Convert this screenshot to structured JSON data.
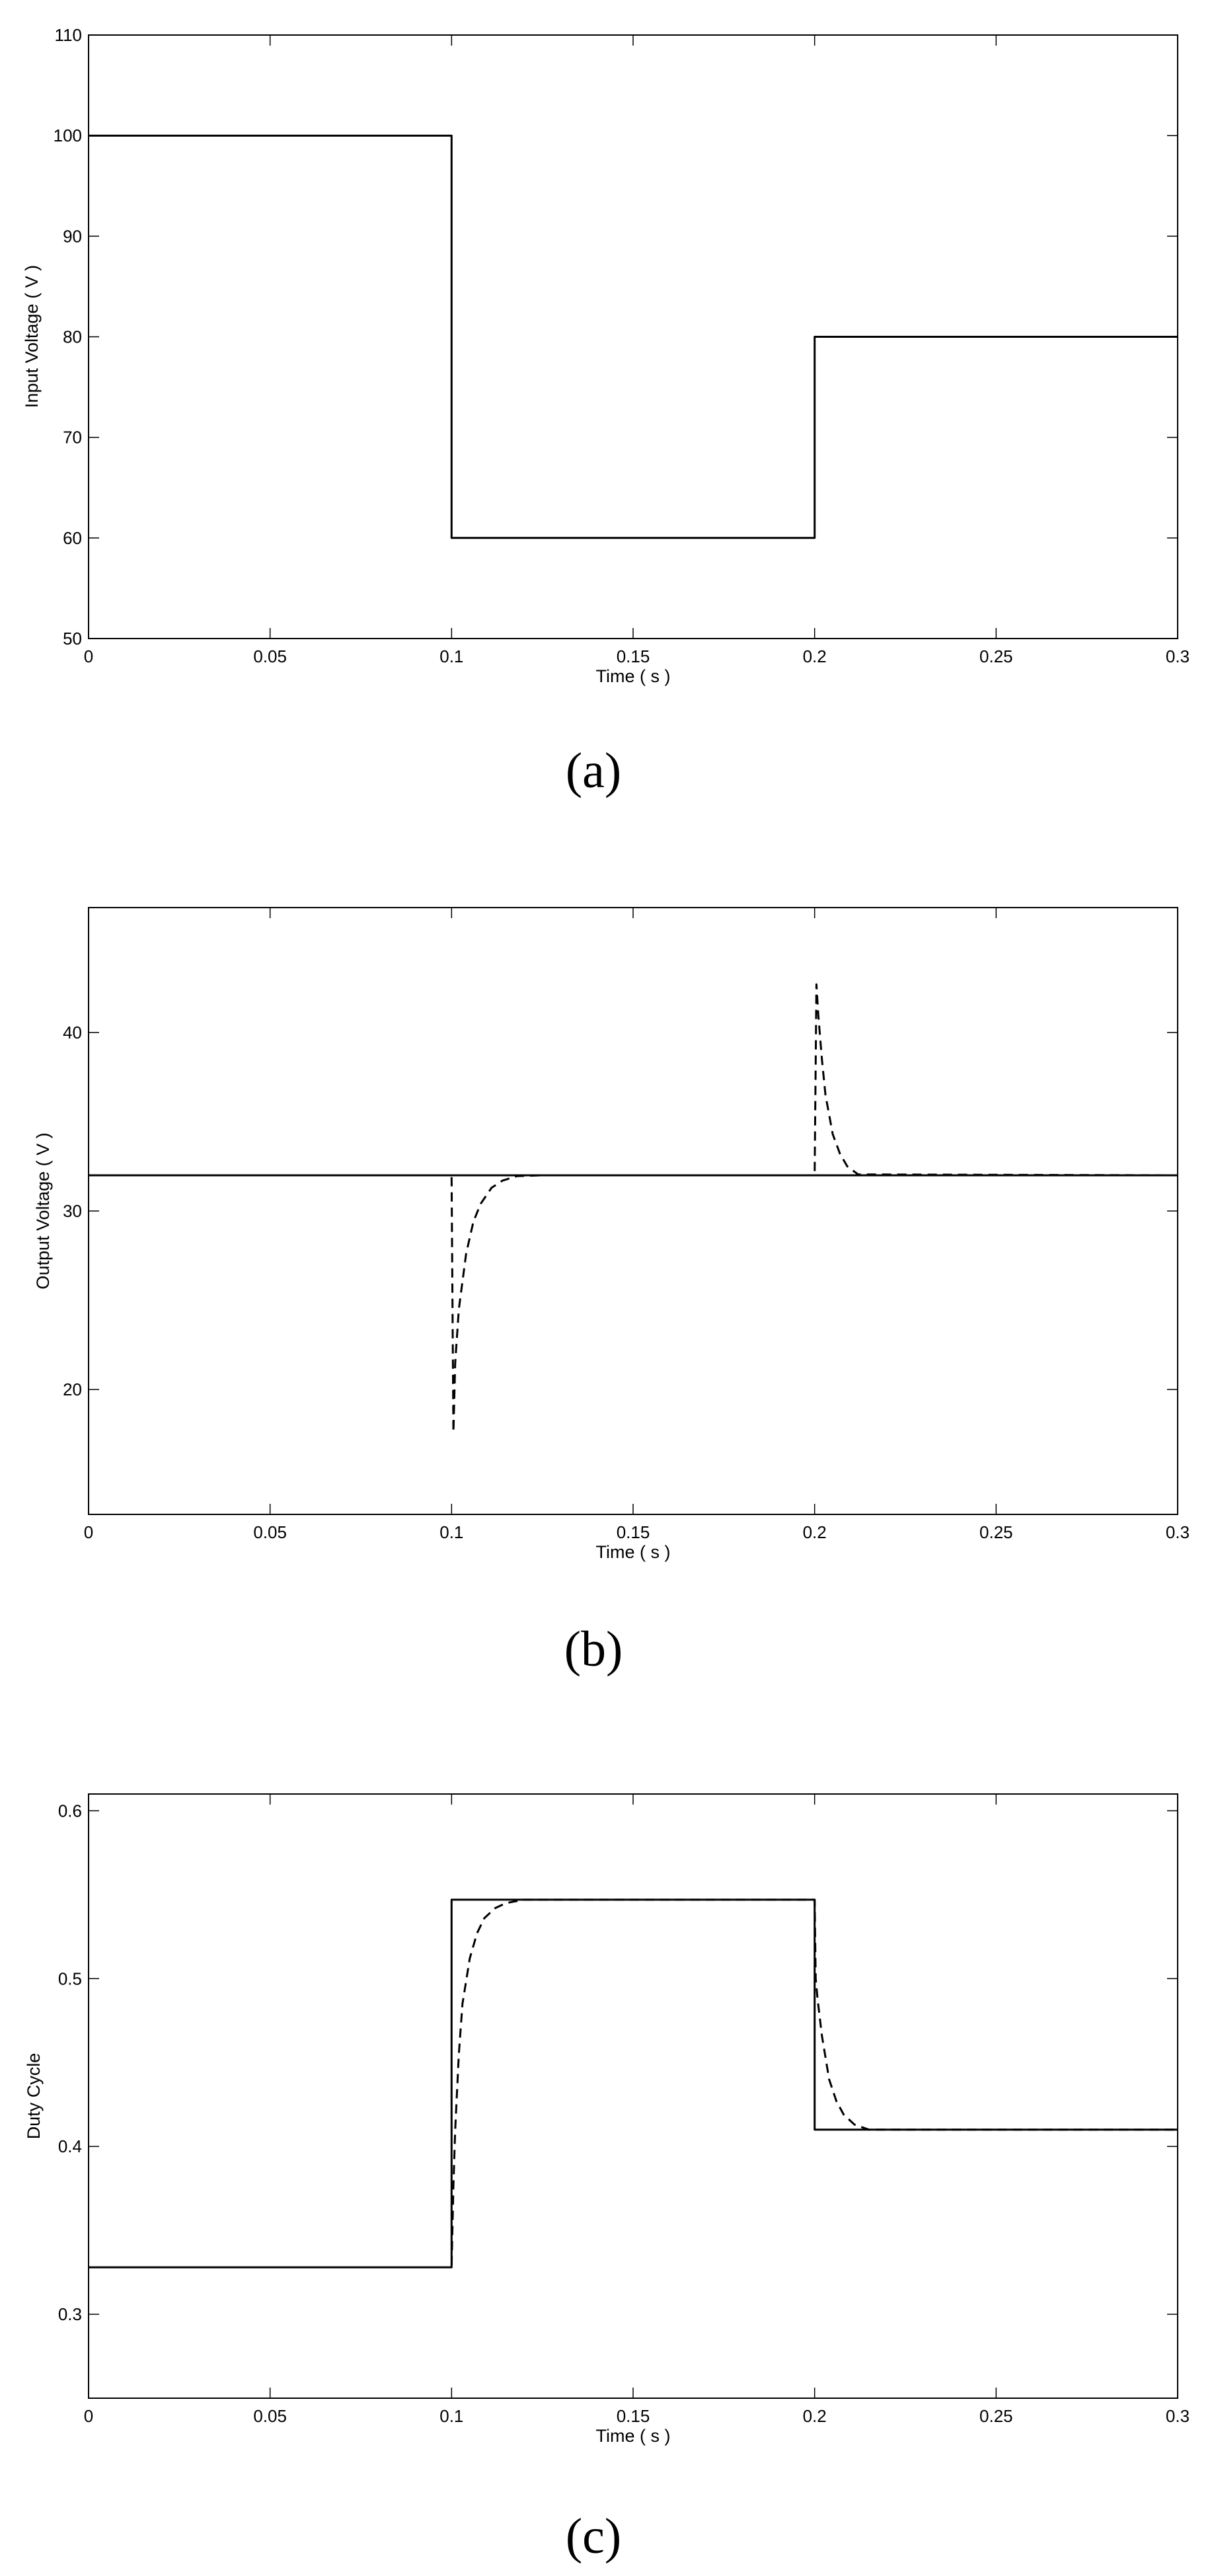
{
  "figure": {
    "panels": [
      "(a)",
      "(b)",
      "(c)"
    ]
  },
  "chart_data": [
    {
      "type": "line",
      "panel_label": "(a)",
      "xlabel": "Time ( s )",
      "ylabel": "Input Voltage ( V )",
      "xlim": [
        0,
        0.3
      ],
      "ylim": [
        50,
        110
      ],
      "xticks": [
        0,
        0.05,
        0.1,
        0.15,
        0.2,
        0.25,
        0.3
      ],
      "xtick_labels": [
        "0",
        "0.05",
        "0.1",
        "0.15",
        "0.2",
        "0.25",
        "0.3"
      ],
      "yticks": [
        50,
        60,
        70,
        80,
        90,
        100,
        110
      ],
      "ytick_labels": [
        "50",
        "60",
        "70",
        "80",
        "90",
        "100",
        "110"
      ],
      "grid": false,
      "series": [
        {
          "style": "solid",
          "color": "#000000",
          "x": [
            0,
            0.1,
            0.1,
            0.2,
            0.2,
            0.3
          ],
          "y": [
            100,
            100,
            60,
            60,
            80,
            80
          ]
        }
      ]
    },
    {
      "type": "line",
      "panel_label": "(b)",
      "xlabel": "Time ( s )",
      "ylabel": "Output Voltage ( V )",
      "xlim": [
        0,
        0.3
      ],
      "ylim": [
        13,
        47
      ],
      "xticks": [
        0,
        0.05,
        0.1,
        0.15,
        0.2,
        0.25,
        0.3
      ],
      "xtick_labels": [
        "0",
        "0.05",
        "0.1",
        "0.15",
        "0.2",
        "0.25",
        "0.3"
      ],
      "yticks": [
        20,
        30,
        40
      ],
      "ytick_labels": [
        "20",
        "30",
        "40"
      ],
      "grid": false,
      "series": [
        {
          "style": "solid",
          "color": "#000000",
          "x": [
            0,
            0.3
          ],
          "y": [
            32,
            32
          ]
        },
        {
          "style": "dashed",
          "color": "#000000",
          "x": [
            0,
            0.1,
            0.1005,
            0.101,
            0.102,
            0.104,
            0.106,
            0.108,
            0.111,
            0.114,
            0.118,
            0.125,
            0.2,
            0.2005,
            0.201,
            0.202,
            0.203,
            0.205,
            0.207,
            0.209,
            0.212,
            0.3
          ],
          "y": [
            32,
            32,
            17.6,
            21.5,
            24.5,
            27.6,
            29.4,
            30.4,
            31.3,
            31.7,
            31.95,
            32,
            32,
            42.7,
            41.0,
            38.5,
            36.5,
            34.3,
            33.2,
            32.5,
            32.05,
            32
          ]
        }
      ]
    },
    {
      "type": "line",
      "panel_label": "(c)",
      "xlabel": "Time ( s )",
      "ylabel": "Duty Cycle",
      "xlim": [
        0,
        0.3
      ],
      "ylim": [
        0.25,
        0.61
      ],
      "xticks": [
        0,
        0.05,
        0.1,
        0.15,
        0.2,
        0.25,
        0.3
      ],
      "xtick_labels": [
        "0",
        "0.05",
        "0.1",
        "0.15",
        "0.2",
        "0.25",
        "0.3"
      ],
      "yticks": [
        0.3,
        0.4,
        0.5,
        0.6
      ],
      "ytick_labels": [
        "0.3",
        "0.4",
        "0.5",
        "0.6"
      ],
      "grid": false,
      "series": [
        {
          "style": "solid",
          "color": "#000000",
          "x": [
            0,
            0.1,
            0.1,
            0.2,
            0.2,
            0.3
          ],
          "y": [
            0.328,
            0.328,
            0.547,
            0.547,
            0.41,
            0.41
          ]
        },
        {
          "style": "dashed",
          "color": "#000000",
          "x": [
            0,
            0.1,
            0.1005,
            0.101,
            0.102,
            0.103,
            0.105,
            0.107,
            0.109,
            0.112,
            0.115,
            0.12,
            0.13,
            0.2,
            0.2003,
            0.2008,
            0.202,
            0.204,
            0.206,
            0.208,
            0.211,
            0.215,
            0.3
          ],
          "y": [
            0.328,
            0.328,
            0.377,
            0.41,
            0.455,
            0.485,
            0.512,
            0.527,
            0.536,
            0.542,
            0.545,
            0.547,
            0.547,
            0.547,
            0.5,
            0.488,
            0.466,
            0.44,
            0.427,
            0.419,
            0.413,
            0.41,
            0.41
          ]
        }
      ]
    }
  ]
}
